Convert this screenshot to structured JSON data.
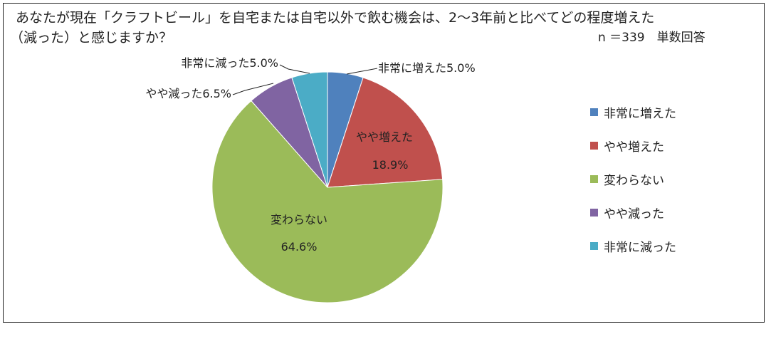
{
  "title": {
    "line1": "あなたが現在「クラフトビール」を自宅または自宅以外で飲む機会は、2～3年前と比べてどの程度増えた",
    "line2": "（減った）と感じますか？"
  },
  "sample_note": "n ＝339　単数回答",
  "chart_data": {
    "type": "pie",
    "categories": [
      "非常に増えた",
      "やや増えた",
      "変わらない",
      "やや減った",
      "非常に減った"
    ],
    "values": [
      5.0,
      18.9,
      64.6,
      6.5,
      5.0
    ],
    "unit": "%",
    "colors": [
      "#4f81bd",
      "#c0504d",
      "#9bbb59",
      "#8064a2",
      "#4bacc6"
    ],
    "data_labels": [
      {
        "category": "非常に増えた",
        "text": "非常に増えた5.0%"
      },
      {
        "category": "やや増えた",
        "text": "やや増えた",
        "value_text": "18.9%"
      },
      {
        "category": "変わらない",
        "text": "変わらない",
        "value_text": "64.6%"
      },
      {
        "category": "やや減った",
        "text": "やや減った6.5%"
      },
      {
        "category": "非常に減った",
        "text": "非常に減った5.0%"
      }
    ],
    "legend_position": "right"
  }
}
